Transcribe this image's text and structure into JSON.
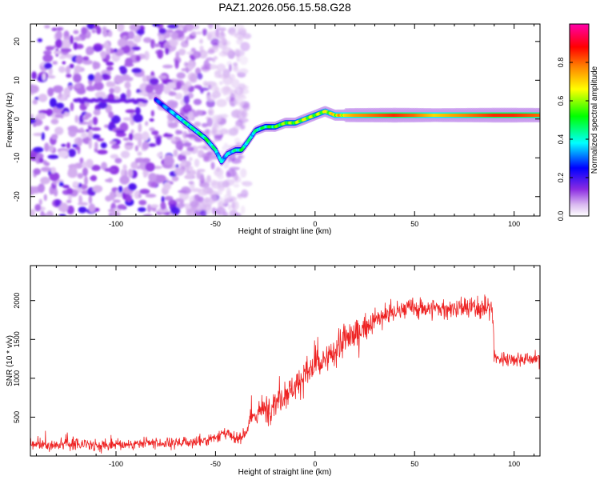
{
  "figure_title": "PAZ1.2026.056.15.58.G28",
  "chart_data": [
    {
      "type": "heatmap",
      "title": "PAZ1.2026.056.15.58.G28",
      "xlabel": "Height of straight line (km)",
      "ylabel": "Frequency (Hz)",
      "xlim": [
        -143,
        113
      ],
      "ylim": [
        -25,
        24.5
      ],
      "xticks": [
        -100,
        -50,
        0,
        50,
        100
      ],
      "yticks": [
        -20,
        -10,
        0,
        10,
        20
      ],
      "colorbar": {
        "label": "Normalized spectral amplitude",
        "range": [
          0,
          1
        ],
        "ticks": [
          0.0,
          0.2,
          0.4,
          0.6,
          0.8
        ],
        "colors": [
          "#ffffff",
          "#d9b8f0",
          "#8a2be2",
          "#0000ff",
          "#00ffff",
          "#00ff00",
          "#ffff00",
          "#ff8000",
          "#ff0000",
          "#ff00aa"
        ]
      },
      "ridge": {
        "x": [
          -80,
          -75,
          -70,
          -65,
          -60,
          -55,
          -50,
          -47,
          -44,
          -40,
          -37,
          -34,
          -30,
          -25,
          -20,
          -15,
          -10,
          -5,
          0,
          5,
          10,
          15,
          20,
          30,
          40,
          50,
          60,
          70,
          80,
          90,
          100,
          113
        ],
        "y": [
          5,
          3,
          1,
          -1,
          -3,
          -5,
          -8,
          -11,
          -9,
          -8,
          -8,
          -6,
          -3,
          -2,
          -2,
          -1,
          -1,
          0,
          1,
          2,
          1,
          1,
          1,
          1,
          1,
          1,
          1,
          1,
          1,
          1,
          1,
          1
        ],
        "amp": [
          0.25,
          0.3,
          0.35,
          0.4,
          0.4,
          0.45,
          0.4,
          0.35,
          0.35,
          0.4,
          0.45,
          0.4,
          0.4,
          0.45,
          0.5,
          0.55,
          0.55,
          0.6,
          0.55,
          0.6,
          0.65,
          0.7,
          0.75,
          0.8,
          0.85,
          0.8,
          0.7,
          0.75,
          0.8,
          0.85,
          0.85,
          0.8
        ]
      },
      "noise_region": {
        "x": [
          -143,
          -38
        ],
        "y": [
          -25,
          24.5
        ],
        "level": "low (0.05-0.3)"
      }
    },
    {
      "type": "line",
      "xlabel": "Height of straight line (km)",
      "ylabel": "SNR (10 * v/v)",
      "xlim": [
        -143,
        113
      ],
      "ylim": [
        0,
        2450
      ],
      "xticks": [
        -100,
        -50,
        0,
        50,
        100
      ],
      "yticks": [
        500,
        1000,
        1500,
        2000
      ],
      "series": [
        {
          "name": "SNR",
          "color": "#ee2222",
          "x": [
            -143,
            -130,
            -120,
            -110,
            -100,
            -90,
            -80,
            -70,
            -60,
            -55,
            -50,
            -45,
            -40,
            -35,
            -30,
            -25,
            -20,
            -15,
            -10,
            -5,
            0,
            5,
            10,
            15,
            20,
            25,
            30,
            35,
            40,
            45,
            50,
            55,
            60,
            65,
            70,
            75,
            80,
            85,
            89,
            90,
            91,
            95,
            100,
            105,
            110,
            113
          ],
          "values": [
            150,
            150,
            150,
            150,
            150,
            150,
            160,
            170,
            180,
            200,
            250,
            300,
            200,
            300,
            550,
            600,
            700,
            800,
            900,
            1050,
            1150,
            1200,
            1350,
            1500,
            1550,
            1650,
            1750,
            1800,
            1850,
            1900,
            1900,
            1900,
            1900,
            1900,
            1900,
            1900,
            1900,
            1900,
            1900,
            1350,
            1250,
            1250,
            1250,
            1250,
            1250,
            1250
          ]
        }
      ]
    }
  ]
}
